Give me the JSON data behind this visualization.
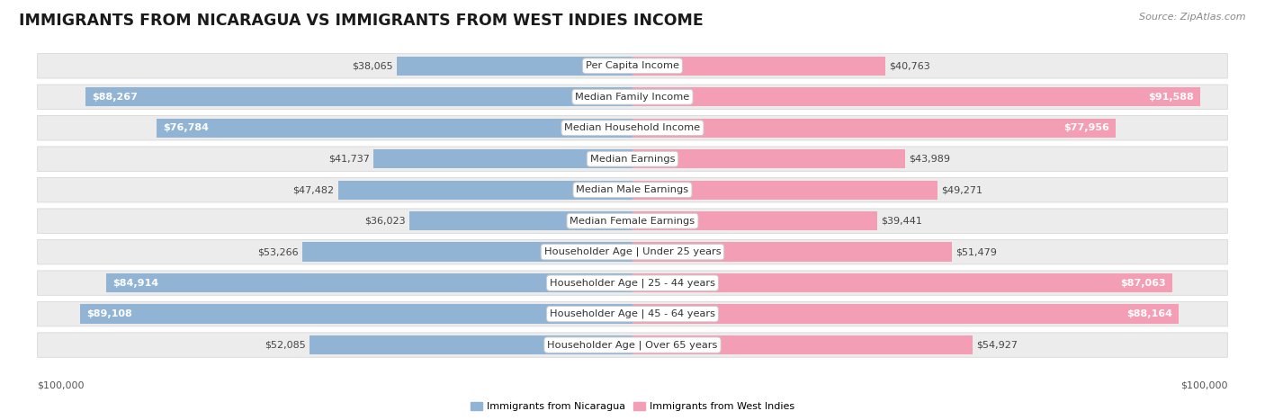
{
  "title": "IMMIGRANTS FROM NICARAGUA VS IMMIGRANTS FROM WEST INDIES INCOME",
  "source": "Source: ZipAtlas.com",
  "categories": [
    "Per Capita Income",
    "Median Family Income",
    "Median Household Income",
    "Median Earnings",
    "Median Male Earnings",
    "Median Female Earnings",
    "Householder Age | Under 25 years",
    "Householder Age | 25 - 44 years",
    "Householder Age | 45 - 64 years",
    "Householder Age | Over 65 years"
  ],
  "nicaragua_values": [
    38065,
    88267,
    76784,
    41737,
    47482,
    36023,
    53266,
    84914,
    89108,
    52085
  ],
  "west_indies_values": [
    40763,
    91588,
    77956,
    43989,
    49271,
    39441,
    51479,
    87063,
    88164,
    54927
  ],
  "nicaragua_labels": [
    "$38,065",
    "$88,267",
    "$76,784",
    "$41,737",
    "$47,482",
    "$36,023",
    "$53,266",
    "$84,914",
    "$89,108",
    "$52,085"
  ],
  "west_indies_labels": [
    "$40,763",
    "$91,588",
    "$77,956",
    "$43,989",
    "$49,271",
    "$39,441",
    "$51,479",
    "$87,063",
    "$88,164",
    "$54,927"
  ],
  "nicaragua_color": "#91b4d5",
  "west_indies_color": "#f49eb5",
  "max_value": 100000,
  "legend_nicaragua": "Immigrants from Nicaragua",
  "legend_west_indies": "Immigrants from West Indies",
  "title_fontsize": 12.5,
  "label_fontsize": 8.0,
  "category_fontsize": 8.2,
  "source_fontsize": 8.0,
  "row_bg": "#ececec",
  "row_border": "#d8d8d8",
  "white_label_threshold": 68000
}
